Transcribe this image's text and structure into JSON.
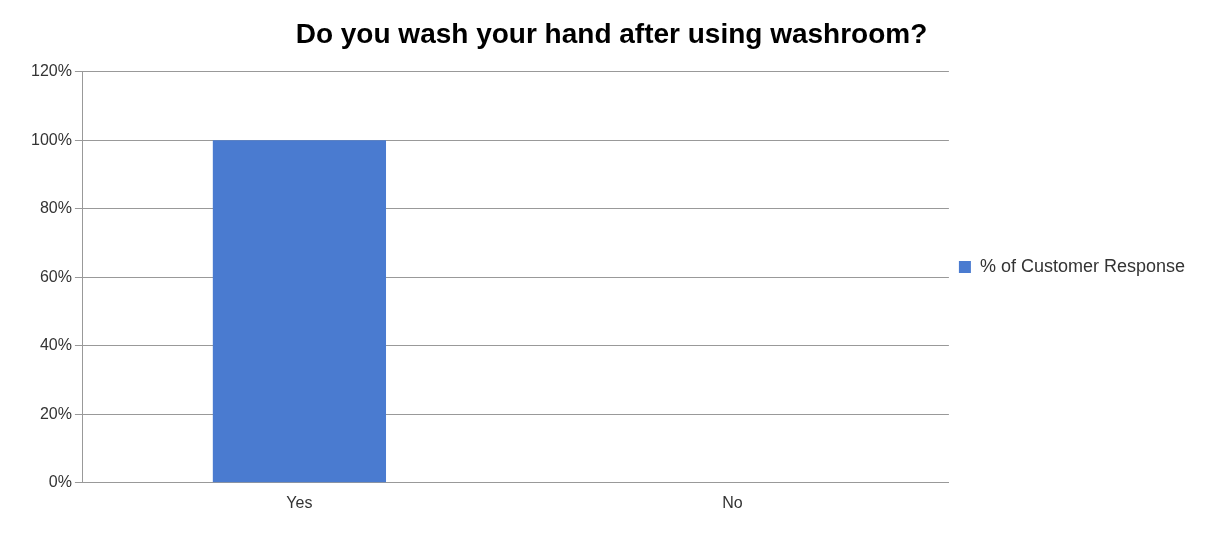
{
  "chart_data": {
    "type": "bar",
    "title": "Do you wash your hand after using washroom?",
    "categories": [
      "Yes",
      "No"
    ],
    "series": [
      {
        "name": "% of Customer Response",
        "color": "#4a7bd0",
        "values": [
          100,
          0
        ]
      }
    ],
    "ylim": [
      0,
      120
    ],
    "yticks": [
      {
        "value": 0,
        "label": "0%"
      },
      {
        "value": 20,
        "label": "20%"
      },
      {
        "value": 40,
        "label": "40%"
      },
      {
        "value": 60,
        "label": "60%"
      },
      {
        "value": 80,
        "label": "80%"
      },
      {
        "value": 100,
        "label": "100%"
      },
      {
        "value": 120,
        "label": "120%"
      }
    ],
    "grid": "y",
    "legend": "right"
  }
}
